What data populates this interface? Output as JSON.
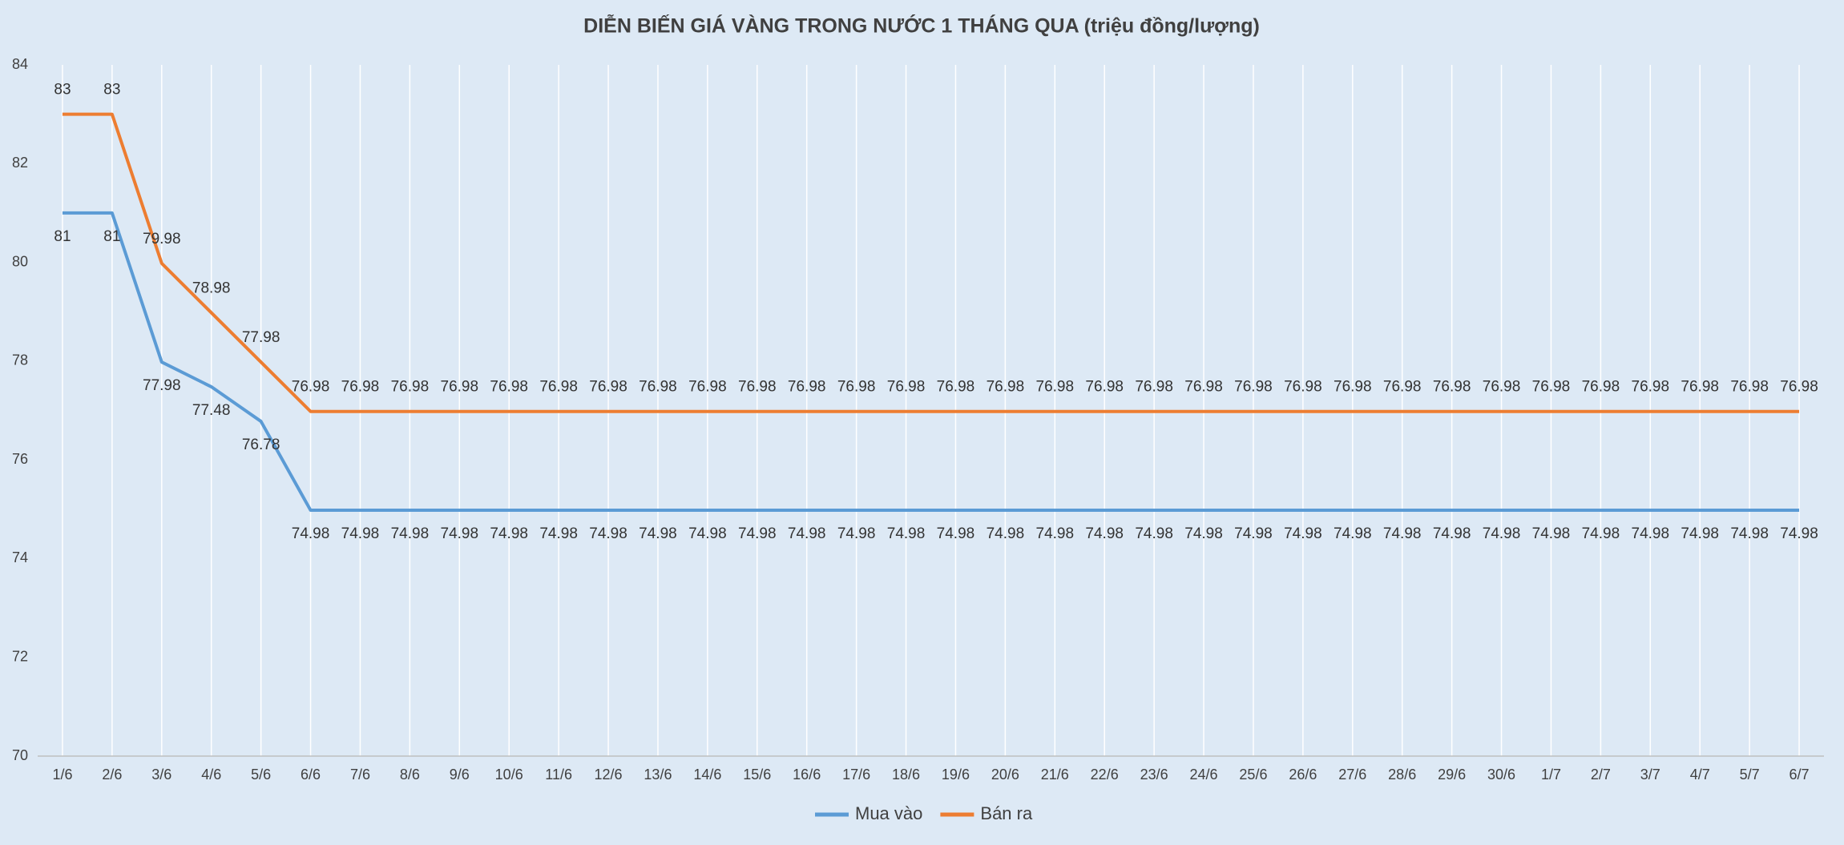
{
  "chart_data": {
    "type": "line",
    "title": "DIỄN BIẾN GIÁ VÀNG TRONG NƯỚC 1 THÁNG QUA (triệu đồng/lượng)",
    "categories": [
      "1/6",
      "2/6",
      "3/6",
      "4/6",
      "5/6",
      "6/6",
      "7/6",
      "8/6",
      "9/6",
      "10/6",
      "11/6",
      "12/6",
      "13/6",
      "14/6",
      "15/6",
      "16/6",
      "17/6",
      "18/6",
      "19/6",
      "20/6",
      "21/6",
      "22/6",
      "23/6",
      "24/6",
      "25/6",
      "26/6",
      "27/6",
      "28/6",
      "29/6",
      "30/6",
      "1/7",
      "2/7",
      "3/7",
      "4/7",
      "5/7",
      "6/7"
    ],
    "series": [
      {
        "name": "Mua vào",
        "color": "#5b9bd5",
        "label_position": "below",
        "values": [
          81,
          81,
          77.98,
          77.48,
          76.78,
          74.98,
          74.98,
          74.98,
          74.98,
          74.98,
          74.98,
          74.98,
          74.98,
          74.98,
          74.98,
          74.98,
          74.98,
          74.98,
          74.98,
          74.98,
          74.98,
          74.98,
          74.98,
          74.98,
          74.98,
          74.98,
          74.98,
          74.98,
          74.98,
          74.98,
          74.98,
          74.98,
          74.98,
          74.98,
          74.98,
          74.98
        ]
      },
      {
        "name": "Bán ra",
        "color": "#ed7d31",
        "label_position": "above",
        "values": [
          83,
          83,
          79.98,
          78.98,
          77.98,
          76.98,
          76.98,
          76.98,
          76.98,
          76.98,
          76.98,
          76.98,
          76.98,
          76.98,
          76.98,
          76.98,
          76.98,
          76.98,
          76.98,
          76.98,
          76.98,
          76.98,
          76.98,
          76.98,
          76.98,
          76.98,
          76.98,
          76.98,
          76.98,
          76.98,
          76.98,
          76.98,
          76.98,
          76.98,
          76.98,
          76.98
        ]
      }
    ],
    "ylim": [
      70,
      84
    ],
    "yticks": [
      70,
      72,
      74,
      76,
      78,
      80,
      82,
      84
    ],
    "grid": false,
    "category_lines": true,
    "legend": "bottom"
  }
}
